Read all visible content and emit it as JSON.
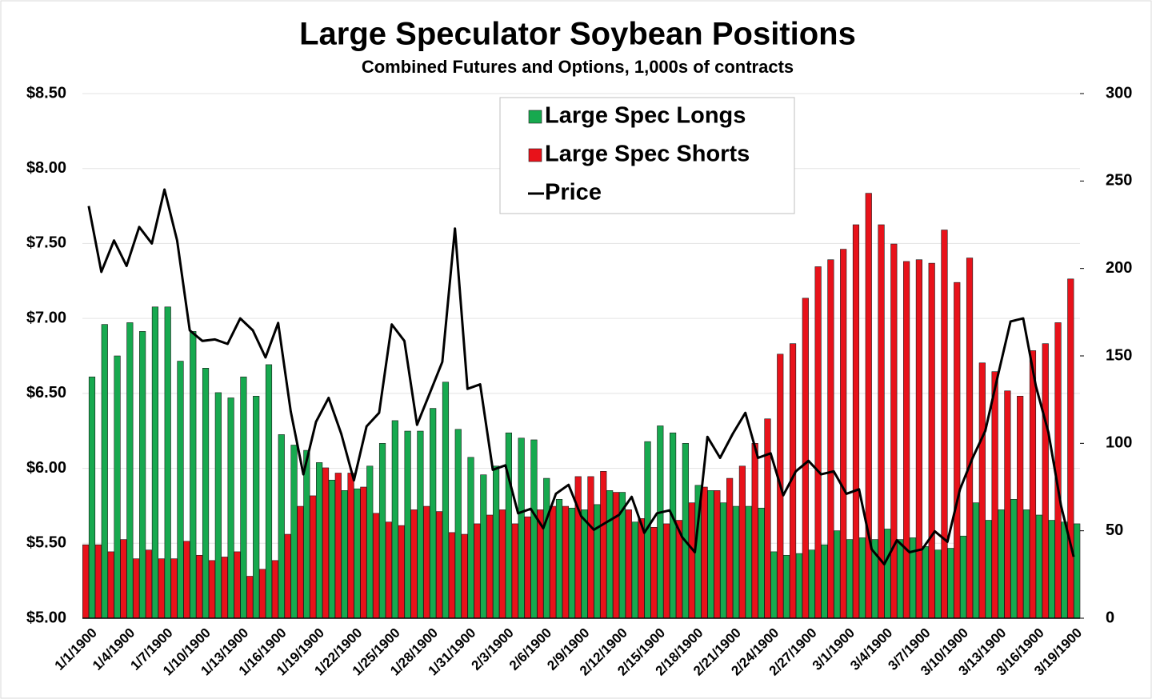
{
  "chart_data": {
    "type": "bar",
    "title": "Large Speculator Soybean Positions",
    "subtitle": "Combined Futures and Options, 1,000s of contracts",
    "categories": [
      "1/1/1900",
      null,
      null,
      "1/4/1900",
      null,
      null,
      "1/7/1900",
      null,
      null,
      "1/10/1900",
      null,
      null,
      "1/13/1900",
      null,
      null,
      "1/16/1900",
      null,
      null,
      "1/19/1900",
      null,
      null,
      "1/22/1900",
      null,
      null,
      "1/25/1900",
      null,
      null,
      "1/28/1900",
      null,
      null,
      "1/31/1900",
      null,
      null,
      "2/3/1900",
      null,
      null,
      "2/6/1900",
      null,
      null,
      "2/9/1900",
      null,
      null,
      "2/12/1900",
      null,
      null,
      "2/15/1900",
      null,
      null,
      "2/18/1900",
      null,
      null,
      "2/21/1900",
      null,
      null,
      "2/24/1900",
      null,
      null,
      "2/27/1900",
      null,
      null,
      "3/1/1900",
      null,
      null,
      "3/4/1900",
      null,
      null,
      "3/7/1900",
      null,
      null,
      "3/10/1900",
      null,
      null,
      "3/13/1900",
      null,
      null,
      "3/16/1900",
      null,
      null,
      "3/19/1900"
    ],
    "series": [
      {
        "name": "Large Spec Longs",
        "color": "#17a94f",
        "axis": "y2",
        "type": "bar",
        "values": [
          138,
          168,
          150,
          169,
          164,
          178,
          178,
          147,
          164,
          143,
          129,
          126,
          138,
          127,
          145,
          105,
          99,
          96,
          89,
          79,
          73,
          74,
          87,
          100,
          113,
          107,
          107,
          120,
          135,
          108,
          92,
          82,
          87,
          106,
          103,
          102,
          80,
          68,
          63,
          62,
          65,
          73,
          72,
          55,
          101,
          110,
          106,
          100,
          76,
          73,
          66,
          64,
          64,
          63,
          38,
          36,
          37,
          39,
          42,
          50,
          45,
          46,
          45,
          51,
          45,
          46,
          41,
          39,
          40,
          47,
          66,
          56,
          62,
          68,
          62,
          59,
          56,
          55,
          54
        ]
      },
      {
        "name": "Large Spec Shorts",
        "color": "#e8121a",
        "axis": "y2",
        "type": "bar",
        "values": [
          42,
          42,
          38,
          45,
          34,
          39,
          34,
          34,
          44,
          36,
          33,
          35,
          38,
          24,
          28,
          33,
          48,
          64,
          70,
          86,
          83,
          83,
          75,
          60,
          55,
          53,
          62,
          64,
          61,
          49,
          48,
          54,
          59,
          62,
          54,
          58,
          62,
          64,
          64,
          81,
          81,
          84,
          72,
          62,
          57,
          52,
          54,
          56,
          66,
          75,
          73,
          80,
          87,
          100,
          114,
          151,
          157,
          183,
          201,
          205,
          211,
          225,
          243,
          225,
          214,
          204,
          205,
          203,
          222,
          192,
          206,
          146,
          141,
          130,
          127,
          153,
          157,
          169,
          194
        ]
      },
      {
        "name": "Price",
        "color": "#000000",
        "axis": "y",
        "type": "line",
        "values": [
          7.75,
          7.31,
          7.52,
          7.35,
          7.61,
          7.5,
          7.86,
          7.52,
          6.92,
          6.85,
          6.86,
          6.83,
          7.0,
          6.92,
          6.74,
          6.97,
          6.38,
          5.96,
          6.31,
          6.47,
          6.23,
          5.92,
          6.28,
          6.37,
          6.96,
          6.85,
          6.29,
          6.5,
          6.71,
          7.6,
          6.53,
          6.56,
          5.99,
          6.02,
          5.7,
          5.73,
          5.6,
          5.83,
          5.89,
          5.68,
          5.59,
          5.64,
          5.69,
          5.81,
          5.57,
          5.7,
          5.72,
          5.54,
          5.44,
          6.21,
          6.07,
          6.23,
          6.37,
          6.07,
          6.1,
          5.82,
          5.98,
          6.05,
          5.96,
          5.98,
          5.83,
          5.86,
          5.46,
          5.36,
          5.52,
          5.44,
          5.46,
          5.58,
          5.51,
          5.86,
          6.07,
          6.25,
          6.62,
          6.98,
          7.0,
          6.55,
          6.24,
          5.75,
          5.41
        ]
      }
    ],
    "ylim": [
      5,
      8.5
    ],
    "yticks": [
      {
        "value": 5,
        "label": "$5.00"
      },
      {
        "value": 5.5,
        "label": "$5.50"
      },
      {
        "value": 6,
        "label": "$6.00"
      },
      {
        "value": 6.5,
        "label": "$6.50"
      },
      {
        "value": 7,
        "label": "$7.00"
      },
      {
        "value": 7.5,
        "label": "$7.50"
      },
      {
        "value": 8,
        "label": "$8.00"
      },
      {
        "value": 8.5,
        "label": "$8.50"
      }
    ],
    "y2lim": [
      0,
      300
    ],
    "y2ticks": [
      0,
      50,
      100,
      150,
      200,
      250,
      300
    ],
    "grid": true,
    "legend": "top"
  }
}
